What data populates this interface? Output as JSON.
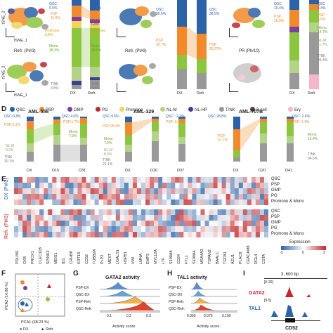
{
  "colors": {
    "QSC": "#2b62a8",
    "PSP": "#f08a2a",
    "GMP": "#7b3fa0",
    "PG": "#c0282b",
    "Promono": "#f3d35a",
    "Mono": "#8cc63e",
    "NL-M": "#b5d28a",
    "NL-HP": "#3b3f8f",
    "T/NK": "#999999",
    "B cell": "#5c3d2e",
    "Ery": "#f6b6c8"
  },
  "panelC": {
    "bars": {
      "dx": {
        "qsc": "QSC\n5.5%",
        "psp": "PSP\n11.6%",
        "promono": "Promono\n6.8%",
        "mono": "Mono\n38.3%",
        "tnk": "T/NK\n3.8%"
      },
      "refr": {
        "qsc": "QSC\n10.7%",
        "psp": "PSP\n8.4%",
        "gmp": "GMP",
        "promono": "Promono\n4.4%",
        "mono": "Mono\n38.5%",
        "tnk": "T/NK\n9.6%"
      }
    },
    "tsne": {
      "x": "tSNE_1",
      "y": "tSNE_2",
      "refr_title": "Refr. (Pt#3)"
    },
    "xcats": [
      "DX",
      "Refr."
    ]
  },
  "panel9": {
    "title": "Refr. (Pt#9)",
    "qsc_dx": "QSC\n30.6%",
    "qsc_refr": "QSC\n38.5%",
    "psp_dx": "PSP\n30.7%",
    "psp_refr": "PSP\n29.27%",
    "xcats": [
      "DX",
      "Refr."
    ]
  },
  "panel10": {
    "title": "PR (Pt#10)",
    "qsc_dx": "QSC\n10.4%",
    "qsc_refr": "QSC\n4.4%",
    "psp_dx": "PSP\n18.9%",
    "psp_refr": "PSP\n6.5%",
    "mono_refr": "Mono\n14.7%",
    "nlm_refr": "NL-M\n11.7%",
    "tnk_refr": "T/NK\n46.4%",
    "xcats": [
      "DX",
      "Refr."
    ]
  },
  "legend": [
    "QSC",
    "PSP",
    "GMP",
    "PG",
    "Promono",
    "NL-M",
    "NL-HP",
    "T/NK",
    "B cell",
    "Ery"
  ],
  "panelD": {
    "letter": "D",
    "aml556": {
      "title": "AML-556",
      "xcats": [
        "DX",
        "D15",
        "D31"
      ],
      "labels": [
        "QSC:0.8%",
        "QSC:4.6%",
        "PSP:1.7%",
        "PSP:5.1%",
        "Mono\n7.9%",
        "NL-M\n9.0%",
        "T/NK\n20.1%"
      ]
    },
    "aml329": {
      "title": "AML-329",
      "xcats": [
        "DX",
        "D20",
        "D37"
      ],
      "labels": [
        "QSC:9.5%",
        "QSC : 2.2%",
        "PSP: 3.1%",
        "PSP:28.4%",
        "Mono\n7.2%",
        "NL-M\n8.3%",
        "T/NK\n21.1%"
      ]
    },
    "aml707": {
      "title": "AML-707B",
      "xcats": [
        "DX",
        "D20",
        "D41"
      ],
      "labels": [
        "QSC:28.8%",
        "QSC: 2.6%",
        "PSP: 3.4%",
        "PSP\n51.7%",
        "Mono\n15.4%",
        "T/NK\n34.6%"
      ]
    }
  },
  "panelE": {
    "letter": "E",
    "dx_group": "DX (Pt#3)",
    "refr_group": "Refr. (Pt#3)",
    "rows": [
      "QSC",
      "PSP",
      "GMP",
      "PG",
      "Promono & Mono"
    ],
    "genes": [
      "PDLIM1",
      "CKB",
      "PROX1",
      "CLEC11B",
      "SPINK2",
      "MEIS1",
      "ID1",
      "CRHBP",
      "KRT18",
      "CD52",
      "TUBB2A",
      "PLP2",
      "MEST",
      "LGALS1",
      "HSPB1",
      "VIM",
      "LMNA",
      "EMP3",
      "MYL12A",
      "LTF",
      "S100A8",
      "CD24",
      "FTL1",
      "S100A4",
      "MSA4A3",
      "TSPAN2",
      "BAALC",
      "TGFB1",
      "AZU1",
      "PLAC8",
      "CEACAM8",
      "RGL4",
      "CSTA"
    ],
    "legend_title": "Expression",
    "legend_ticks": [
      "-3",
      "0",
      "3"
    ]
  },
  "panelF": {
    "letter": "F",
    "xlabel": "PCA1 (68.23 %)",
    "ylabel": "PCA2 (14.86 %)",
    "legend": [
      "DX",
      "Refr."
    ]
  },
  "panelG": {
    "letter": "G",
    "title": "GATA2 activity",
    "rows": [
      "PSP-DX",
      "QSC-DX",
      "PSP-Refr.",
      "QSC-Refr."
    ],
    "xlabel": "Activity score",
    "ticks": [
      "0.1",
      "0.2",
      "0.3"
    ]
  },
  "panelH": {
    "letter": "H",
    "title": "TAL1 activity",
    "rows": [
      "PSP-DX",
      "QSC-DX",
      "PSP-Refr.",
      "QSC-Refr."
    ],
    "xlabel": "Activity score",
    "ticks": [
      "0.050",
      "0.075",
      "0.100"
    ]
  },
  "panelI": {
    "letter": "I",
    "scale": "3, 600 bp",
    "track1": "GATA2",
    "track1_range": "[0-20]",
    "track2": "TAL1",
    "track2_range": "[0-5]",
    "gene": "CD52"
  }
}
